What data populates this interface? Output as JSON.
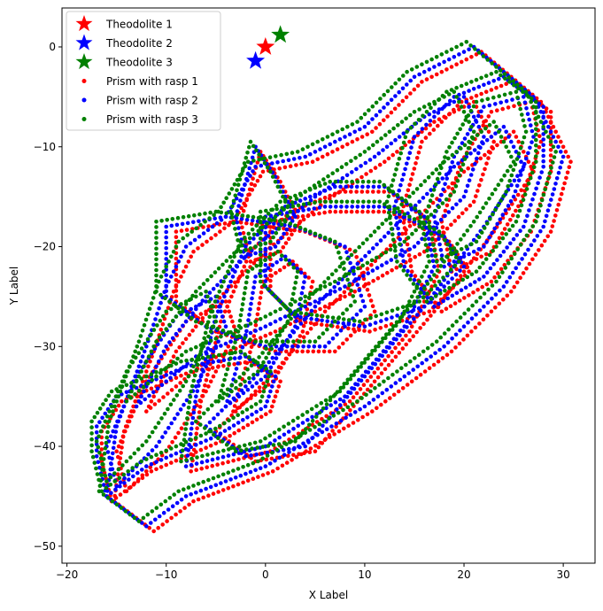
{
  "chart_data": {
    "type": "scatter",
    "xlabel": "X Label",
    "ylabel": "Y Label",
    "xlim": [
      -20.5,
      33.2
    ],
    "ylim": [
      -51.7,
      3.9
    ],
    "xticks": [
      -20,
      -10,
      0,
      10,
      20,
      30
    ],
    "yticks": [
      0,
      -10,
      -20,
      -30,
      -40,
      -50
    ],
    "xtick_labels": [
      "−20",
      "−10",
      "0",
      "10",
      "20",
      "30"
    ],
    "ytick_labels": [
      "0",
      "−10",
      "−20",
      "−30",
      "−40",
      "−50"
    ],
    "legend_position": "top-left",
    "theodolites": [
      {
        "name": "Theodolite 1",
        "color": "#ff0000",
        "x": 0.0,
        "y": 0.0
      },
      {
        "name": "Theodolite 2",
        "color": "#0000ff",
        "x": -1.0,
        "y": -1.4
      },
      {
        "name": "Theodolite 3",
        "color": "#008000",
        "x": 1.5,
        "y": 1.2
      }
    ],
    "prism_series": [
      {
        "name": "Prism with rasp 1",
        "color": "#ff0000",
        "offset": [
          0.5,
          -0.5
        ]
      },
      {
        "name": "Prism with rasp 2",
        "color": "#0000ff",
        "offset": [
          0.0,
          0.0
        ]
      },
      {
        "name": "Prism with rasp 3",
        "color": "#008000",
        "offset": [
          -0.5,
          0.5
        ]
      }
    ],
    "trajectory_loops": [
      [
        [
          -17,
          -38
        ],
        [
          -15,
          -35
        ],
        [
          -8,
          -32
        ],
        [
          -2,
          -31
        ],
        [
          1,
          -33
        ],
        [
          0,
          -36
        ],
        [
          -5,
          -39
        ],
        [
          -12,
          -42
        ],
        [
          -16,
          -45
        ],
        [
          -17,
          -41
        ],
        [
          -17,
          -38
        ]
      ],
      [
        [
          -12,
          -48
        ],
        [
          -8,
          -45
        ],
        [
          0,
          -42
        ],
        [
          10,
          -36
        ],
        [
          18,
          -30
        ],
        [
          24,
          -24
        ],
        [
          28,
          -18
        ],
        [
          30,
          -11
        ],
        [
          27,
          -5
        ],
        [
          21,
          0
        ],
        [
          15,
          -3
        ],
        [
          10,
          -8
        ],
        [
          4,
          -11
        ],
        [
          -1,
          -12
        ],
        [
          -4,
          -17
        ],
        [
          -8,
          -20
        ],
        [
          -10,
          -24
        ],
        [
          -12,
          -30
        ],
        [
          -15,
          -38
        ],
        [
          -16,
          -45
        ],
        [
          -12,
          -48
        ]
      ],
      [
        [
          -10,
          -18
        ],
        [
          -4,
          -17
        ],
        [
          3,
          -18
        ],
        [
          8,
          -20
        ],
        [
          10,
          -26
        ],
        [
          6,
          -30
        ],
        [
          0,
          -30
        ],
        [
          -6,
          -28
        ],
        [
          -10,
          -25
        ],
        [
          -10,
          -18
        ]
      ],
      [
        [
          0,
          -17
        ],
        [
          6,
          -16
        ],
        [
          12,
          -16
        ],
        [
          18,
          -19
        ],
        [
          20,
          -22
        ],
        [
          16,
          -26
        ],
        [
          10,
          -28
        ],
        [
          3,
          -27
        ],
        [
          0,
          -24
        ],
        [
          0,
          -17
        ]
      ],
      [
        [
          15,
          -9
        ],
        [
          19,
          -5
        ],
        [
          24,
          -3
        ],
        [
          28,
          -6
        ],
        [
          28,
          -12
        ],
        [
          26,
          -18
        ],
        [
          22,
          -23
        ],
        [
          17,
          -26
        ],
        [
          14,
          -22
        ],
        [
          13,
          -16
        ],
        [
          15,
          -9
        ]
      ],
      [
        [
          -13,
          -36
        ],
        [
          -7,
          -31
        ],
        [
          0,
          -28
        ],
        [
          8,
          -24
        ],
        [
          15,
          -20
        ],
        [
          20,
          -15
        ],
        [
          22,
          -9
        ],
        [
          20,
          -5
        ],
        [
          16,
          -7
        ],
        [
          11,
          -11
        ],
        [
          5,
          -15
        ],
        [
          -1,
          -20
        ],
        [
          -6,
          -25
        ],
        [
          -10,
          -30
        ],
        [
          -13,
          -36
        ]
      ],
      [
        [
          -8,
          -42
        ],
        [
          0,
          -40
        ],
        [
          8,
          -35
        ],
        [
          14,
          -28
        ],
        [
          17,
          -22
        ],
        [
          16,
          -17
        ],
        [
          12,
          -14
        ],
        [
          7,
          -14
        ],
        [
          2,
          -16
        ],
        [
          -2,
          -20
        ],
        [
          -5,
          -27
        ],
        [
          -7,
          -35
        ],
        [
          -8,
          -42
        ]
      ],
      [
        [
          -4,
          -36
        ],
        [
          0,
          -33
        ],
        [
          3,
          -28
        ],
        [
          4,
          -23
        ],
        [
          2,
          -21
        ],
        [
          -1,
          -23
        ],
        [
          -2,
          -29
        ],
        [
          -4,
          -36
        ]
      ],
      [
        [
          -6,
          -38
        ],
        [
          -2,
          -41
        ],
        [
          4,
          -40
        ],
        [
          10,
          -33
        ],
        [
          16,
          -26
        ],
        [
          22,
          -18
        ],
        [
          26,
          -12
        ],
        [
          24,
          -8
        ],
        [
          19,
          -12
        ],
        [
          12,
          -19
        ],
        [
          5,
          -26
        ],
        [
          0,
          -32
        ],
        [
          -4,
          -36
        ],
        [
          -6,
          -38
        ]
      ],
      [
        [
          -1,
          -10
        ],
        [
          1,
          -13
        ],
        [
          3,
          -17
        ],
        [
          1,
          -20
        ],
        [
          -2,
          -21
        ],
        [
          -3,
          -17
        ],
        [
          -1,
          -10
        ]
      ],
      [
        [
          18,
          -22
        ],
        [
          22,
          -20
        ],
        [
          25,
          -15
        ],
        [
          27,
          -9
        ],
        [
          26,
          -5
        ],
        [
          22,
          -6
        ],
        [
          19,
          -11
        ],
        [
          17,
          -17
        ],
        [
          18,
          -22
        ]
      ],
      [
        [
          -15,
          -44
        ],
        [
          -11,
          -40
        ],
        [
          -7,
          -34
        ],
        [
          -4,
          -28
        ],
        [
          -5,
          -25
        ],
        [
          -9,
          -27
        ],
        [
          -13,
          -33
        ],
        [
          -16,
          -40
        ],
        [
          -15,
          -44
        ]
      ]
    ],
    "point_spacing": 0.55
  }
}
